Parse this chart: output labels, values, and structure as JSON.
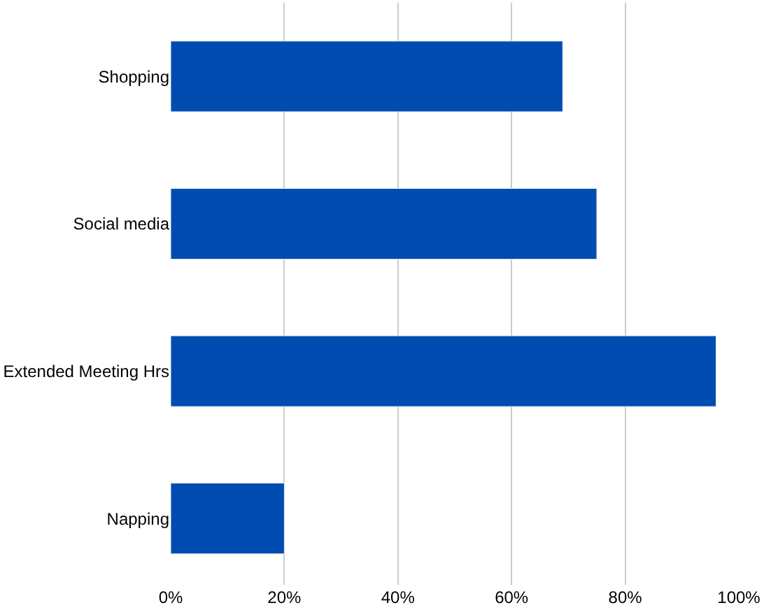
{
  "chart_data": {
    "type": "bar",
    "orientation": "horizontal",
    "categories": [
      "Shopping",
      "Social media",
      "Extended Meeting Hrs",
      "Napping"
    ],
    "values": [
      69,
      75,
      96,
      20
    ],
    "color": "#004cb0",
    "xlim": [
      0,
      100
    ],
    "xticks": [
      {
        "value": 0,
        "label": "0%"
      },
      {
        "value": 20,
        "label": "20%"
      },
      {
        "value": 40,
        "label": "40%"
      },
      {
        "value": 60,
        "label": "60%"
      },
      {
        "value": 80,
        "label": "80%"
      },
      {
        "value": 100,
        "label": "100%"
      }
    ],
    "grid": "x"
  }
}
